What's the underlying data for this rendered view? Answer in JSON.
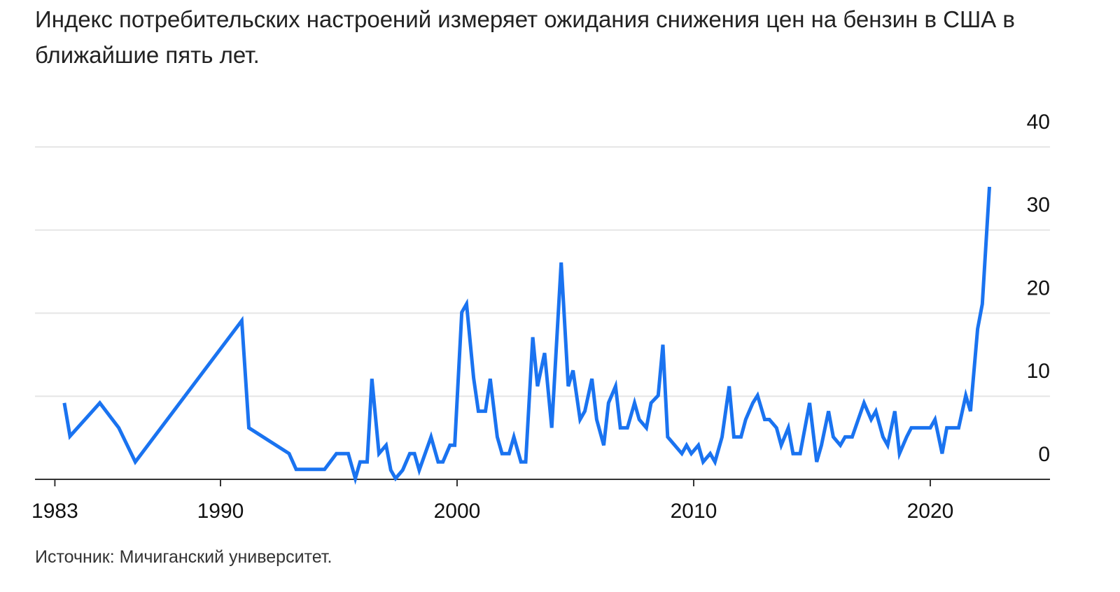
{
  "chart_data": {
    "type": "line",
    "title": "Индекс потребительских настроений измеряет ожидания снижения цен на бензин в США в ближайшие пять лет.",
    "source": "Источник: Мичиганский университет.",
    "color": "#1a73f0",
    "x": [
      1983.4,
      1983.64,
      1984.9,
      1985.7,
      1986.4,
      1990.9,
      1991.2,
      1992.9,
      1993.2,
      1994.4,
      1994.9,
      1995.4,
      1995.7,
      1995.9,
      1996.2,
      1996.4,
      1996.7,
      1997.0,
      1997.2,
      1997.4,
      1997.7,
      1998.0,
      1998.2,
      1998.4,
      1998.9,
      1999.2,
      1999.4,
      1999.7,
      1999.9,
      2000.2,
      2000.4,
      2000.7,
      2000.9,
      2001.2,
      2001.4,
      2001.7,
      2001.9,
      2002.2,
      2002.4,
      2002.7,
      2002.9,
      2003.2,
      2003.4,
      2003.7,
      2004.0,
      2004.4,
      2004.7,
      2004.9,
      2005.2,
      2005.4,
      2005.7,
      2005.9,
      2006.2,
      2006.4,
      2006.7,
      2006.9,
      2007.2,
      2007.5,
      2007.7,
      2008.0,
      2008.2,
      2008.5,
      2008.7,
      2008.9,
      2009.2,
      2009.5,
      2009.7,
      2009.9,
      2010.2,
      2010.4,
      2010.7,
      2010.9,
      2011.2,
      2011.5,
      2011.7,
      2012.0,
      2012.2,
      2012.5,
      2012.7,
      2013.0,
      2013.2,
      2013.5,
      2013.7,
      2014.0,
      2014.2,
      2014.5,
      2014.9,
      2015.2,
      2015.4,
      2015.7,
      2015.9,
      2016.2,
      2016.4,
      2016.7,
      2017.2,
      2017.5,
      2017.7,
      2018.0,
      2018.2,
      2018.5,
      2018.7,
      2019.0,
      2019.2,
      2020.0,
      2020.2,
      2020.5,
      2020.7,
      2021.2,
      2021.5,
      2021.7,
      2022.0,
      2022.2,
      2022.5
    ],
    "values": [
      9.2,
      5.2,
      9.2,
      6.2,
      2.1,
      19.1,
      6.2,
      3.1,
      1.2,
      1.2,
      3.1,
      3.1,
      0.1,
      2.1,
      2.1,
      12.1,
      3.1,
      4.1,
      1.1,
      0.1,
      1.1,
      3.1,
      3.1,
      1.1,
      5.1,
      2.1,
      2.1,
      4.1,
      4.1,
      20.1,
      21.1,
      12.2,
      8.2,
      8.2,
      12.1,
      5.1,
      3.1,
      3.1,
      5.1,
      2.1,
      2.1,
      17.1,
      11.2,
      15.2,
      6.2,
      26.1,
      11.2,
      13.1,
      7.2,
      8.2,
      12.1,
      7.2,
      4.1,
      9.2,
      11.2,
      6.2,
      6.2,
      9.2,
      7.2,
      6.2,
      9.2,
      10.1,
      16.2,
      5.1,
      4.1,
      3.1,
      4.1,
      3.1,
      4.1,
      2.1,
      3.1,
      2.1,
      5.1,
      11.2,
      5.1,
      5.1,
      7.2,
      9.2,
      10.1,
      7.2,
      7.2,
      6.2,
      4.1,
      6.2,
      3.1,
      3.1,
      9.2,
      2.1,
      4.1,
      8.2,
      5.1,
      4.1,
      5.1,
      5.1,
      9.2,
      7.2,
      8.2,
      5.1,
      4.1,
      8.2,
      3.1,
      5.1,
      6.2,
      6.2,
      7.2,
      3.1,
      6.2,
      6.2,
      10.1,
      8.2,
      18.1,
      21.1,
      35.2
    ],
    "xlim": [
      1982.16,
      2025.06
    ],
    "xticks": [
      1983,
      1990,
      2000,
      2010,
      2020
    ],
    "ylim": [
      0,
      40
    ],
    "yticks": [
      0,
      10,
      20,
      30,
      40
    ],
    "grid": true
  }
}
